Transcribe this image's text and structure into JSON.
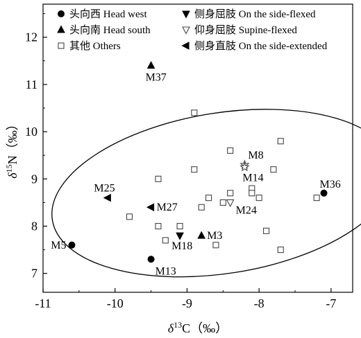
{
  "chart_data": {
    "type": "scatter",
    "title": "",
    "xlabel": {
      "prefix": "δ",
      "sup": "13",
      "main": "C（‰）"
    },
    "ylabel": {
      "prefix": "δ",
      "sup": "15",
      "main": "N（‰）"
    },
    "xlim": [
      -11,
      -6.7
    ],
    "ylim": [
      6.6,
      12.7
    ],
    "x_ticks": [
      -11,
      -10,
      -9,
      -8,
      -7
    ],
    "y_ticks": [
      7,
      8,
      9,
      10,
      11,
      12
    ],
    "x_tick_labels": [
      "-11",
      "-10",
      "-9",
      "-8",
      "-7"
    ],
    "y_tick_labels": [
      "7",
      "8",
      "9",
      "10",
      "11",
      "12"
    ],
    "grid": false,
    "legend_position": "top-left",
    "legend": [
      {
        "marker": "circle",
        "label": "头向西  Head west"
      },
      {
        "marker": "triangle-up",
        "label": "头向南  Head south"
      },
      {
        "marker": "square-open",
        "label": "其他  Others"
      },
      {
        "marker": "triangle-down",
        "label": "侧身屈肢  On the side-flexed"
      },
      {
        "marker": "triangle-down-open",
        "label": "仰身屈肢  Supine-flexed"
      },
      {
        "marker": "triangle-left",
        "label": "侧身直肢  On the side-extended"
      }
    ],
    "ellipse": {
      "cx": -8.5,
      "cy": 8.7,
      "rx": 2.4,
      "ry": 1.7,
      "rotation_deg": -9
    },
    "series": [
      {
        "name": "头向西 Head west",
        "marker": "circle",
        "points": [
          {
            "x": -10.6,
            "y": 7.6,
            "label": "M5"
          },
          {
            "x": -9.5,
            "y": 7.3,
            "label": "M13"
          },
          {
            "x": -7.1,
            "y": 8.7,
            "label": "M36"
          }
        ]
      },
      {
        "name": "头向南 Head south",
        "marker": "triangle-up",
        "points": [
          {
            "x": -9.5,
            "y": 11.4,
            "label": "M37"
          },
          {
            "x": -8.8,
            "y": 7.8,
            "label": "M3"
          }
        ]
      },
      {
        "name": "其他 Others",
        "marker": "square-open",
        "points": [
          {
            "x": -9.8,
            "y": 8.2
          },
          {
            "x": -9.4,
            "y": 9.0
          },
          {
            "x": -9.4,
            "y": 8.0
          },
          {
            "x": -9.3,
            "y": 7.7
          },
          {
            "x": -9.1,
            "y": 8.0
          },
          {
            "x": -8.9,
            "y": 10.4
          },
          {
            "x": -8.9,
            "y": 9.2
          },
          {
            "x": -8.8,
            "y": 8.4
          },
          {
            "x": -8.7,
            "y": 8.6
          },
          {
            "x": -8.6,
            "y": 7.6
          },
          {
            "x": -8.5,
            "y": 8.5
          },
          {
            "x": -8.4,
            "y": 9.6
          },
          {
            "x": -8.4,
            "y": 8.7
          },
          {
            "x": -8.1,
            "y": 8.8
          },
          {
            "x": -8.1,
            "y": 8.7
          },
          {
            "x": -8.0,
            "y": 8.6
          },
          {
            "x": -7.9,
            "y": 7.9
          },
          {
            "x": -7.8,
            "y": 9.2
          },
          {
            "x": -7.7,
            "y": 9.8
          },
          {
            "x": -7.7,
            "y": 7.5
          },
          {
            "x": -7.2,
            "y": 8.6
          }
        ]
      },
      {
        "name": "侧身屈肢 On the side-flexed",
        "marker": "triangle-down",
        "points": [
          {
            "x": -9.1,
            "y": 7.8,
            "label": "M18"
          }
        ]
      },
      {
        "name": "仰身屈肢 Supine-flexed",
        "marker": "triangle-down-open",
        "points": [
          {
            "x": -8.4,
            "y": 8.5,
            "label": "M24"
          }
        ]
      },
      {
        "name": "侧身直肢 On the side-extended",
        "marker": "triangle-left",
        "points": [
          {
            "x": -10.1,
            "y": 8.6,
            "label": "M25"
          },
          {
            "x": -9.5,
            "y": 8.4,
            "label": "M27"
          }
        ]
      },
      {
        "name": "",
        "marker": "star-open",
        "points": [
          {
            "x": -8.2,
            "y": 9.3,
            "label": "M8"
          },
          {
            "x": -8.2,
            "y": 9.25,
            "label": "M14"
          }
        ]
      }
    ]
  }
}
